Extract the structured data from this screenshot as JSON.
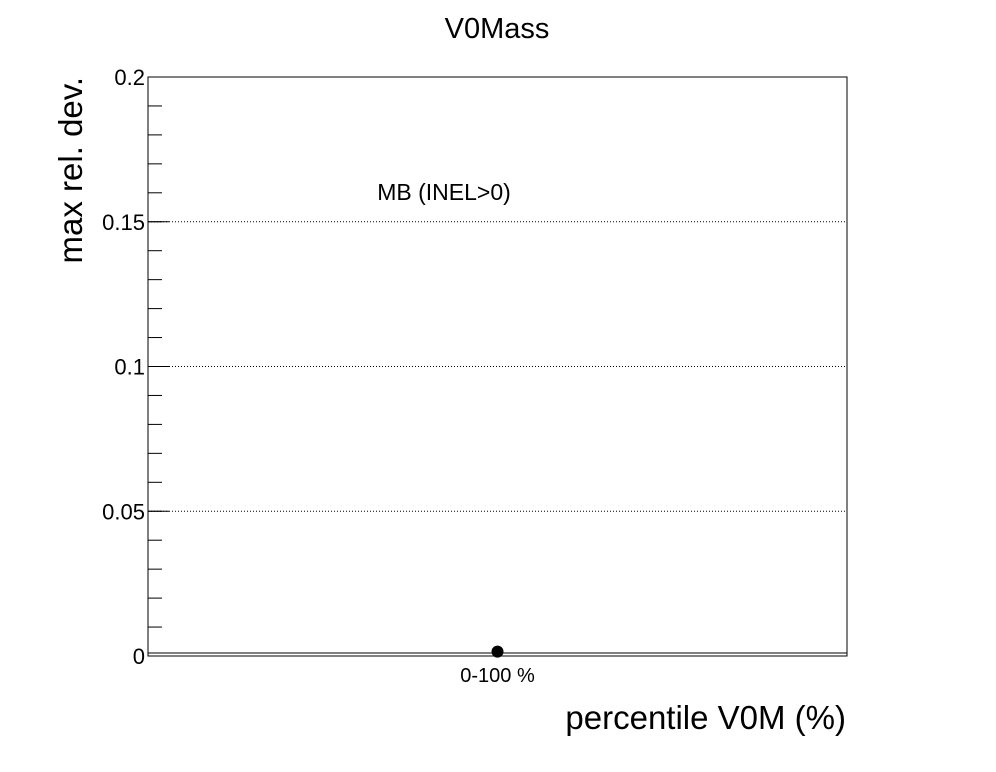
{
  "chart_data": {
    "type": "scatter",
    "title": "V0Mass",
    "xlabel": "percentile V0M (%)",
    "ylabel": "max rel. dev.",
    "categories": [
      "0-100 %"
    ],
    "ylim": [
      0,
      0.2
    ],
    "yticks": [
      "0",
      "0.05",
      "0.1",
      "0.15",
      "0.2"
    ],
    "ytick_values": [
      0,
      0.05,
      0.1,
      0.15,
      0.2
    ],
    "grid": true,
    "series": [
      {
        "values": [
          0.0015
        ]
      }
    ],
    "annotations": [
      {
        "text": "MB (INEL>0)"
      }
    ],
    "colors": {
      "marker": "#000000",
      "axis": "#000000",
      "grid": "#000000"
    }
  }
}
